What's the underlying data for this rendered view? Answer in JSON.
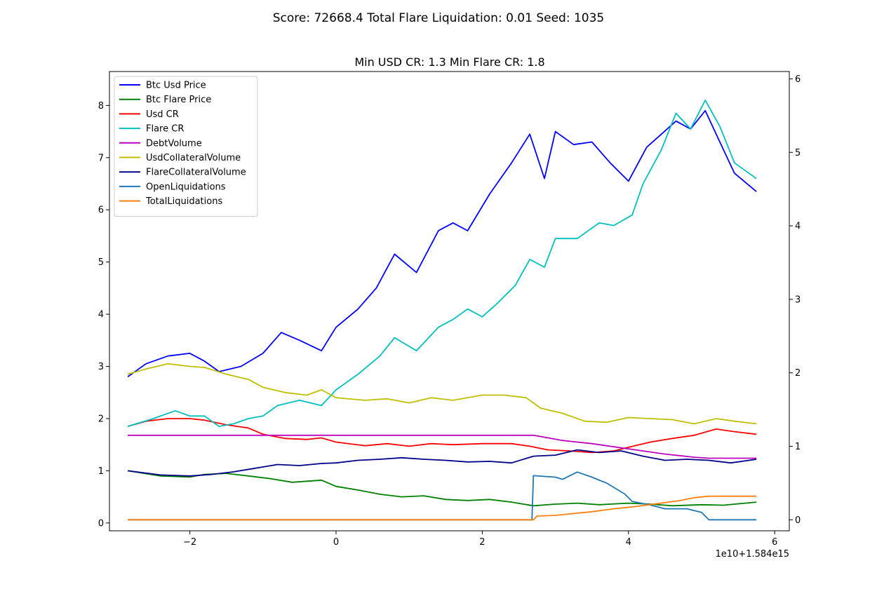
{
  "figure": {
    "suptitle": "Score: 72668.4 Total Flare Liquidation: 0.01 Seed: 1035",
    "axes_title": "Min USD CR: 1.3 Min Flare CR: 1.8"
  },
  "chart_data": {
    "type": "line",
    "title": "Min USD CR: 1.3 Min Flare CR: 1.8",
    "xlabel": "",
    "ylabel": "",
    "x_offset_label": "1e10+1.584e15",
    "xlim": [
      -3.1,
      6.2
    ],
    "ylim_left": [
      -0.15,
      8.65
    ],
    "ylim_right": [
      -0.15,
      6.1
    ],
    "x_ticks": [
      "−2",
      "0",
      "2",
      "4",
      "6"
    ],
    "x_tick_values": [
      -2,
      0,
      2,
      4,
      6
    ],
    "y_ticks_left": [
      "0",
      "1",
      "2",
      "3",
      "4",
      "5",
      "6",
      "7",
      "8"
    ],
    "y_tick_values_left": [
      0,
      1,
      2,
      3,
      4,
      5,
      6,
      7,
      8
    ],
    "y_ticks_right": [
      "0",
      "1",
      "2",
      "3",
      "4",
      "5",
      "6"
    ],
    "y_tick_values_right": [
      0,
      1,
      2,
      3,
      4,
      5,
      6
    ],
    "grid": false,
    "legend_position": "upper-left",
    "series": [
      {
        "name": "Btc Usd Price",
        "color": "#0000ff",
        "axis": "left",
        "points": [
          [
            -2.85,
            2.8
          ],
          [
            -2.6,
            3.05
          ],
          [
            -2.3,
            3.2
          ],
          [
            -2.0,
            3.25
          ],
          [
            -1.8,
            3.1
          ],
          [
            -1.6,
            2.9
          ],
          [
            -1.3,
            3.0
          ],
          [
            -1.0,
            3.25
          ],
          [
            -0.75,
            3.65
          ],
          [
            -0.5,
            3.5
          ],
          [
            -0.2,
            3.3
          ],
          [
            0.0,
            3.75
          ],
          [
            0.3,
            4.1
          ],
          [
            0.55,
            4.5
          ],
          [
            0.8,
            5.15
          ],
          [
            1.1,
            4.8
          ],
          [
            1.4,
            5.6
          ],
          [
            1.6,
            5.75
          ],
          [
            1.8,
            5.6
          ],
          [
            2.1,
            6.3
          ],
          [
            2.4,
            6.9
          ],
          [
            2.65,
            7.45
          ],
          [
            2.85,
            6.6
          ],
          [
            3.0,
            7.5
          ],
          [
            3.25,
            7.25
          ],
          [
            3.5,
            7.3
          ],
          [
            3.75,
            6.9
          ],
          [
            4.0,
            6.55
          ],
          [
            4.25,
            7.2
          ],
          [
            4.45,
            7.45
          ],
          [
            4.65,
            7.7
          ],
          [
            4.85,
            7.55
          ],
          [
            5.05,
            7.9
          ],
          [
            5.25,
            7.3
          ],
          [
            5.45,
            6.7
          ],
          [
            5.75,
            6.35
          ]
        ]
      },
      {
        "name": "Btc Flare Price",
        "color": "#008000",
        "axis": "left",
        "points": [
          [
            -2.85,
            1.0
          ],
          [
            -2.4,
            0.9
          ],
          [
            -2.0,
            0.88
          ],
          [
            -1.8,
            0.93
          ],
          [
            -1.5,
            0.95
          ],
          [
            -1.2,
            0.9
          ],
          [
            -0.9,
            0.85
          ],
          [
            -0.6,
            0.78
          ],
          [
            -0.2,
            0.82
          ],
          [
            0.0,
            0.7
          ],
          [
            0.3,
            0.63
          ],
          [
            0.6,
            0.55
          ],
          [
            0.9,
            0.5
          ],
          [
            1.2,
            0.52
          ],
          [
            1.5,
            0.45
          ],
          [
            1.8,
            0.43
          ],
          [
            2.1,
            0.45
          ],
          [
            2.4,
            0.4
          ],
          [
            2.7,
            0.33
          ],
          [
            3.0,
            0.36
          ],
          [
            3.3,
            0.38
          ],
          [
            3.6,
            0.35
          ],
          [
            4.0,
            0.38
          ],
          [
            4.3,
            0.36
          ],
          [
            4.6,
            0.33
          ],
          [
            5.0,
            0.35
          ],
          [
            5.3,
            0.34
          ],
          [
            5.75,
            0.4
          ]
        ]
      },
      {
        "name": "Usd CR",
        "color": "#ff0000",
        "axis": "left",
        "points": [
          [
            -2.85,
            1.85
          ],
          [
            -2.6,
            1.95
          ],
          [
            -2.3,
            2.0
          ],
          [
            -2.0,
            2.0
          ],
          [
            -1.8,
            1.97
          ],
          [
            -1.5,
            1.88
          ],
          [
            -1.2,
            1.82
          ],
          [
            -1.0,
            1.7
          ],
          [
            -0.7,
            1.62
          ],
          [
            -0.4,
            1.6
          ],
          [
            -0.2,
            1.63
          ],
          [
            0.0,
            1.55
          ],
          [
            0.4,
            1.48
          ],
          [
            0.7,
            1.52
          ],
          [
            1.0,
            1.47
          ],
          [
            1.3,
            1.52
          ],
          [
            1.6,
            1.5
          ],
          [
            2.0,
            1.52
          ],
          [
            2.4,
            1.52
          ],
          [
            2.65,
            1.47
          ],
          [
            2.9,
            1.4
          ],
          [
            3.2,
            1.38
          ],
          [
            3.5,
            1.35
          ],
          [
            3.8,
            1.38
          ],
          [
            4.0,
            1.45
          ],
          [
            4.3,
            1.55
          ],
          [
            4.6,
            1.62
          ],
          [
            4.9,
            1.68
          ],
          [
            5.2,
            1.8
          ],
          [
            5.45,
            1.75
          ],
          [
            5.75,
            1.7
          ]
        ]
      },
      {
        "name": "Flare CR",
        "color": "#00bfbf",
        "axis": "left",
        "points": [
          [
            -2.85,
            1.85
          ],
          [
            -2.5,
            2.0
          ],
          [
            -2.2,
            2.15
          ],
          [
            -2.0,
            2.05
          ],
          [
            -1.8,
            2.05
          ],
          [
            -1.6,
            1.85
          ],
          [
            -1.4,
            1.9
          ],
          [
            -1.2,
            2.0
          ],
          [
            -1.0,
            2.05
          ],
          [
            -0.8,
            2.25
          ],
          [
            -0.5,
            2.35
          ],
          [
            -0.2,
            2.25
          ],
          [
            0.0,
            2.55
          ],
          [
            0.3,
            2.85
          ],
          [
            0.6,
            3.2
          ],
          [
            0.8,
            3.55
          ],
          [
            1.1,
            3.3
          ],
          [
            1.4,
            3.75
          ],
          [
            1.6,
            3.9
          ],
          [
            1.8,
            4.1
          ],
          [
            2.0,
            3.95
          ],
          [
            2.2,
            4.2
          ],
          [
            2.45,
            4.55
          ],
          [
            2.65,
            5.05
          ],
          [
            2.85,
            4.9
          ],
          [
            3.0,
            5.45
          ],
          [
            3.3,
            5.45
          ],
          [
            3.6,
            5.75
          ],
          [
            3.8,
            5.7
          ],
          [
            4.05,
            5.9
          ],
          [
            4.2,
            6.5
          ],
          [
            4.45,
            7.15
          ],
          [
            4.65,
            7.85
          ],
          [
            4.85,
            7.55
          ],
          [
            5.05,
            8.1
          ],
          [
            5.25,
            7.6
          ],
          [
            5.45,
            6.9
          ],
          [
            5.75,
            6.6
          ]
        ]
      },
      {
        "name": "DebtVolume",
        "color": "#bf00bf",
        "axis": "left",
        "points": [
          [
            -2.85,
            1.68
          ],
          [
            2.7,
            1.68
          ],
          [
            2.9,
            1.63
          ],
          [
            3.1,
            1.58
          ],
          [
            3.3,
            1.55
          ],
          [
            3.5,
            1.52
          ],
          [
            3.7,
            1.48
          ],
          [
            3.9,
            1.44
          ],
          [
            4.1,
            1.4
          ],
          [
            4.3,
            1.36
          ],
          [
            4.5,
            1.32
          ],
          [
            4.7,
            1.29
          ],
          [
            4.9,
            1.26
          ],
          [
            5.1,
            1.24
          ],
          [
            5.75,
            1.24
          ]
        ]
      },
      {
        "name": "UsdCollateralVolume",
        "color": "#bfbf00",
        "axis": "left",
        "points": [
          [
            -2.85,
            2.85
          ],
          [
            -2.6,
            2.95
          ],
          [
            -2.3,
            3.05
          ],
          [
            -2.0,
            3.0
          ],
          [
            -1.8,
            2.98
          ],
          [
            -1.5,
            2.85
          ],
          [
            -1.2,
            2.75
          ],
          [
            -1.0,
            2.6
          ],
          [
            -0.7,
            2.5
          ],
          [
            -0.4,
            2.45
          ],
          [
            -0.2,
            2.55
          ],
          [
            0.0,
            2.4
          ],
          [
            0.4,
            2.35
          ],
          [
            0.7,
            2.38
          ],
          [
            1.0,
            2.3
          ],
          [
            1.3,
            2.4
          ],
          [
            1.6,
            2.35
          ],
          [
            2.0,
            2.45
          ],
          [
            2.3,
            2.45
          ],
          [
            2.6,
            2.4
          ],
          [
            2.8,
            2.2
          ],
          [
            3.1,
            2.1
          ],
          [
            3.4,
            1.95
          ],
          [
            3.7,
            1.93
          ],
          [
            4.0,
            2.02
          ],
          [
            4.3,
            2.0
          ],
          [
            4.6,
            1.98
          ],
          [
            4.9,
            1.9
          ],
          [
            5.2,
            2.0
          ],
          [
            5.45,
            1.95
          ],
          [
            5.75,
            1.9
          ]
        ]
      },
      {
        "name": "FlareCollateralVolume",
        "color": "#00008b",
        "axis": "left",
        "points": [
          [
            -2.85,
            1.0
          ],
          [
            -2.4,
            0.92
          ],
          [
            -2.0,
            0.9
          ],
          [
            -1.7,
            0.93
          ],
          [
            -1.4,
            0.98
          ],
          [
            -1.1,
            1.05
          ],
          [
            -0.8,
            1.12
          ],
          [
            -0.5,
            1.1
          ],
          [
            -0.2,
            1.14
          ],
          [
            0.0,
            1.15
          ],
          [
            0.3,
            1.2
          ],
          [
            0.6,
            1.22
          ],
          [
            0.9,
            1.25
          ],
          [
            1.2,
            1.22
          ],
          [
            1.5,
            1.2
          ],
          [
            1.8,
            1.17
          ],
          [
            2.1,
            1.18
          ],
          [
            2.4,
            1.15
          ],
          [
            2.7,
            1.28
          ],
          [
            3.0,
            1.3
          ],
          [
            3.3,
            1.4
          ],
          [
            3.6,
            1.35
          ],
          [
            3.9,
            1.38
          ],
          [
            4.2,
            1.28
          ],
          [
            4.5,
            1.2
          ],
          [
            4.8,
            1.22
          ],
          [
            5.1,
            1.2
          ],
          [
            5.4,
            1.15
          ],
          [
            5.75,
            1.22
          ]
        ]
      },
      {
        "name": "OpenLiquidations",
        "color": "#1f77b4",
        "axis": "right",
        "points": [
          [
            -2.85,
            0.0
          ],
          [
            2.68,
            0.0
          ],
          [
            2.7,
            0.6
          ],
          [
            3.0,
            0.58
          ],
          [
            3.1,
            0.55
          ],
          [
            3.3,
            0.65
          ],
          [
            3.5,
            0.58
          ],
          [
            3.7,
            0.5
          ],
          [
            3.95,
            0.35
          ],
          [
            4.05,
            0.25
          ],
          [
            4.3,
            0.2
          ],
          [
            4.5,
            0.15
          ],
          [
            4.8,
            0.15
          ],
          [
            5.0,
            0.1
          ],
          [
            5.1,
            0.0
          ],
          [
            5.75,
            0.0
          ]
        ]
      },
      {
        "name": "TotalLiquidations",
        "color": "#ff7f0e",
        "axis": "right",
        "points": [
          [
            -2.85,
            0.0
          ],
          [
            2.7,
            0.0
          ],
          [
            2.75,
            0.05
          ],
          [
            3.0,
            0.06
          ],
          [
            3.2,
            0.08
          ],
          [
            3.5,
            0.11
          ],
          [
            3.8,
            0.15
          ],
          [
            4.1,
            0.18
          ],
          [
            4.4,
            0.22
          ],
          [
            4.7,
            0.26
          ],
          [
            4.9,
            0.3
          ],
          [
            5.1,
            0.32
          ],
          [
            5.75,
            0.32
          ]
        ]
      }
    ]
  }
}
